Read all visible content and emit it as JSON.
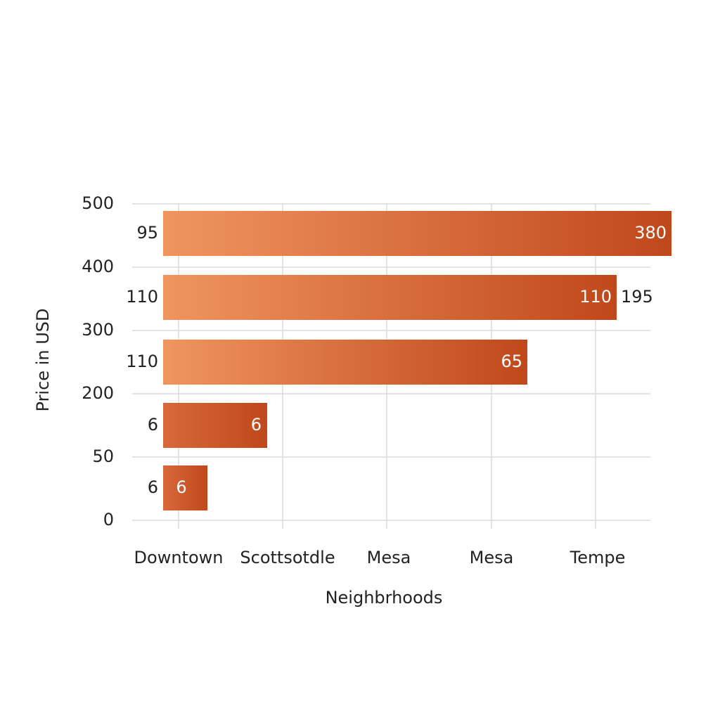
{
  "chart_data": {
    "type": "bar",
    "orientation": "horizontal",
    "x_label": "Neighbrhoods",
    "y_label": "Price in USD",
    "categories": [
      "Downtown",
      "Scottsotdle",
      "Mesa",
      "Mesa",
      "Tempe"
    ],
    "yticks": [
      500,
      400,
      300,
      200,
      50,
      0
    ],
    "bars": [
      {
        "outer": 95,
        "inner": 380
      },
      {
        "outer": 110,
        "inner": 110,
        "after": 195
      },
      {
        "outer": 110,
        "inner": 65
      },
      {
        "outer": 6,
        "inner": 6
      },
      {
        "outer": 6,
        "inner": 6
      }
    ],
    "grid": true,
    "color_start": "#f0955e",
    "color_end": "#c0481b"
  }
}
